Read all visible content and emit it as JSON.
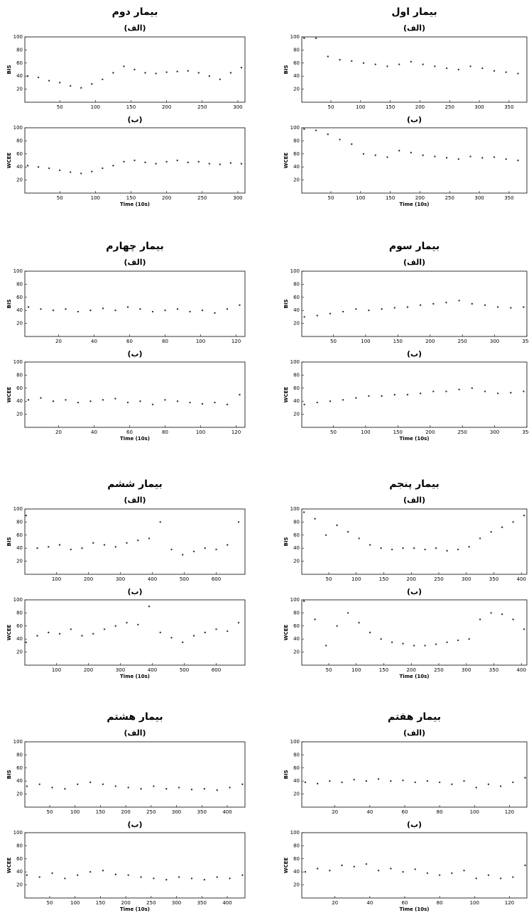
{
  "chart_data": [
    {
      "type": "scatter",
      "title": "بیمار اول",
      "subtitle": "(الف)",
      "ylabel": "BIS",
      "color": "#333333",
      "x": [
        5,
        25,
        45,
        65,
        85,
        105,
        125,
        145,
        165,
        185,
        205,
        225,
        245,
        265,
        285,
        305,
        325,
        345,
        365
      ],
      "values": [
        98,
        98,
        70,
        65,
        63,
        60,
        58,
        55,
        58,
        62,
        58,
        55,
        52,
        50,
        55,
        52,
        48,
        46,
        44
      ],
      "xlim": [
        1,
        380
      ],
      "ylim": [
        0,
        100
      ],
      "xticks": [
        50,
        100,
        150,
        200,
        250,
        300,
        350
      ],
      "yticks": [
        20,
        40,
        60,
        80,
        100
      ]
    },
    {
      "type": "scatter",
      "title": "(ب)",
      "ylabel": "WCEE",
      "xlabel": "Time (10s)",
      "color": "#333333",
      "x": [
        5,
        25,
        45,
        65,
        85,
        105,
        125,
        145,
        165,
        185,
        205,
        225,
        245,
        265,
        285,
        305,
        325,
        345,
        365
      ],
      "values": [
        98,
        96,
        90,
        82,
        75,
        60,
        58,
        55,
        65,
        62,
        58,
        56,
        54,
        52,
        56,
        54,
        55,
        52,
        50
      ],
      "xlim": [
        1,
        380
      ],
      "ylim": [
        0,
        100
      ],
      "xticks": [
        50,
        100,
        150,
        200,
        250,
        300,
        350
      ],
      "yticks": [
        20,
        40,
        60,
        80,
        100
      ]
    },
    {
      "type": "scatter",
      "title": "بیمار دوم",
      "subtitle": "(الف)",
      "ylabel": "BIS",
      "color": "#333333",
      "x": [
        5,
        20,
        35,
        50,
        65,
        80,
        95,
        110,
        125,
        140,
        155,
        170,
        185,
        200,
        215,
        230,
        245,
        260,
        275,
        290,
        305
      ],
      "values": [
        40,
        38,
        33,
        30,
        25,
        22,
        28,
        35,
        45,
        55,
        50,
        45,
        44,
        46,
        47,
        48,
        45,
        40,
        35,
        45,
        53
      ],
      "xlim": [
        1,
        310
      ],
      "ylim": [
        0,
        100
      ],
      "xticks": [
        50,
        100,
        150,
        200,
        250,
        300
      ],
      "yticks": [
        20,
        40,
        60,
        80,
        100
      ]
    },
    {
      "type": "scatter",
      "title": "(ب)",
      "ylabel": "WCEE",
      "xlabel": "Time (10s)",
      "color": "#333333",
      "x": [
        5,
        20,
        35,
        50,
        65,
        80,
        95,
        110,
        125,
        140,
        155,
        170,
        185,
        200,
        215,
        230,
        245,
        260,
        275,
        290,
        305
      ],
      "values": [
        42,
        40,
        38,
        35,
        32,
        30,
        33,
        38,
        42,
        48,
        50,
        47,
        45,
        48,
        50,
        47,
        48,
        45,
        44,
        46,
        45
      ],
      "xlim": [
        1,
        310
      ],
      "ylim": [
        0,
        100
      ],
      "xticks": [
        50,
        100,
        150,
        200,
        250,
        300
      ],
      "yticks": [
        20,
        40,
        60,
        80,
        100
      ]
    },
    {
      "type": "scatter",
      "title": "بیمار سوم",
      "subtitle": "(الف)",
      "ylabel": "BIS",
      "color": "#333333",
      "x": [
        5,
        25,
        45,
        65,
        85,
        105,
        125,
        145,
        165,
        185,
        205,
        225,
        245,
        265,
        285,
        305,
        325,
        345
      ],
      "values": [
        30,
        32,
        35,
        38,
        42,
        40,
        42,
        44,
        45,
        48,
        50,
        52,
        55,
        50,
        48,
        45,
        44,
        45
      ],
      "xlim": [
        1,
        350
      ],
      "ylim": [
        0,
        100
      ],
      "xticks": [
        50,
        100,
        150,
        200,
        250,
        300,
        350
      ],
      "yticks": [
        20,
        40,
        60,
        80,
        100
      ]
    },
    {
      "type": "scatter",
      "title": "(ب)",
      "ylabel": "WCEE",
      "xlabel": "Time (10s)",
      "color": "#333333",
      "x": [
        5,
        25,
        45,
        65,
        85,
        105,
        125,
        145,
        165,
        185,
        205,
        225,
        245,
        265,
        285,
        305,
        325,
        345
      ],
      "values": [
        35,
        38,
        40,
        42,
        45,
        48,
        48,
        50,
        50,
        52,
        55,
        55,
        58,
        60,
        55,
        52,
        53,
        55
      ],
      "xlim": [
        1,
        350
      ],
      "ylim": [
        0,
        100
      ],
      "xticks": [
        50,
        100,
        150,
        200,
        250,
        300,
        350
      ],
      "yticks": [
        20,
        40,
        60,
        80,
        100
      ]
    },
    {
      "type": "scatter",
      "title": "بیمار چهارم",
      "subtitle": "(الف)",
      "ylabel": "BIS",
      "color": "#333333",
      "x": [
        3,
        10,
        17,
        24,
        31,
        38,
        45,
        52,
        59,
        66,
        73,
        80,
        87,
        94,
        101,
        108,
        115,
        122
      ],
      "values": [
        45,
        42,
        40,
        42,
        38,
        40,
        43,
        40,
        45,
        42,
        38,
        40,
        42,
        38,
        40,
        36,
        42,
        48
      ],
      "xlim": [
        1,
        125
      ],
      "ylim": [
        0,
        100
      ],
      "xticks": [
        20,
        40,
        60,
        80,
        100,
        120
      ],
      "yticks": [
        20,
        40,
        60,
        80,
        100
      ]
    },
    {
      "type": "scatter",
      "title": "(ب)",
      "ylabel": "WCEE",
      "xlabel": "Time (10s)",
      "color": "#333333",
      "x": [
        3,
        10,
        17,
        24,
        31,
        38,
        45,
        52,
        59,
        66,
        73,
        80,
        87,
        94,
        101,
        108,
        115,
        122
      ],
      "values": [
        42,
        45,
        40,
        42,
        38,
        40,
        42,
        44,
        38,
        40,
        35,
        42,
        40,
        38,
        36,
        38,
        35,
        50
      ],
      "xlim": [
        1,
        125
      ],
      "ylim": [
        0,
        100
      ],
      "xticks": [
        20,
        40,
        60,
        80,
        100,
        120
      ],
      "yticks": [
        20,
        40,
        60,
        80,
        100
      ]
    },
    {
      "type": "scatter",
      "title": "بیمار پنجم",
      "subtitle": "(الف)",
      "ylabel": "BIS",
      "color": "#333333",
      "x": [
        5,
        25,
        45,
        65,
        85,
        105,
        125,
        145,
        165,
        185,
        205,
        225,
        245,
        265,
        285,
        305,
        325,
        345,
        365,
        385,
        405
      ],
      "values": [
        95,
        85,
        60,
        75,
        65,
        55,
        45,
        40,
        38,
        40,
        40,
        38,
        40,
        36,
        38,
        42,
        55,
        65,
        72,
        80,
        90
      ],
      "xlim": [
        1,
        410
      ],
      "ylim": [
        0,
        100
      ],
      "xticks": [
        50,
        100,
        150,
        200,
        250,
        300,
        350,
        400
      ],
      "yticks": [
        20,
        40,
        60,
        80,
        100
      ]
    },
    {
      "type": "scatter",
      "title": "(ب)",
      "ylabel": "WCEE",
      "xlabel": "Time (10s)",
      "color": "#333333",
      "x": [
        5,
        25,
        45,
        65,
        85,
        105,
        125,
        145,
        165,
        185,
        205,
        225,
        245,
        265,
        285,
        305,
        325,
        345,
        365,
        385,
        405
      ],
      "values": [
        98,
        70,
        30,
        60,
        80,
        65,
        50,
        40,
        35,
        33,
        30,
        30,
        32,
        35,
        38,
        40,
        70,
        80,
        78,
        70,
        55
      ],
      "xlim": [
        1,
        410
      ],
      "ylim": [
        0,
        100
      ],
      "xticks": [
        50,
        100,
        150,
        200,
        250,
        300,
        350,
        400
      ],
      "yticks": [
        20,
        40,
        60,
        80,
        100
      ]
    },
    {
      "type": "scatter",
      "title": "بیمار ششم",
      "subtitle": "(الف)",
      "ylabel": "BIS",
      "color": "#333333",
      "x": [
        5,
        40,
        75,
        110,
        145,
        180,
        215,
        250,
        285,
        320,
        355,
        390,
        425,
        460,
        495,
        530,
        565,
        600,
        635,
        670
      ],
      "values": [
        90,
        40,
        42,
        45,
        38,
        40,
        48,
        45,
        42,
        48,
        52,
        55,
        80,
        38,
        30,
        35,
        40,
        38,
        45,
        80
      ],
      "xlim": [
        1,
        690
      ],
      "ylim": [
        0,
        100
      ],
      "xticks": [
        100,
        200,
        300,
        400,
        500,
        600
      ],
      "yticks": [
        20,
        40,
        60,
        80,
        100
      ]
    },
    {
      "type": "scatter",
      "title": "(ب)",
      "ylabel": "WCEE",
      "xlabel": "Time (10s)",
      "color": "#333333",
      "x": [
        5,
        40,
        75,
        110,
        145,
        180,
        215,
        250,
        285,
        320,
        355,
        390,
        425,
        460,
        495,
        530,
        565,
        600,
        635,
        670
      ],
      "values": [
        35,
        45,
        50,
        48,
        55,
        45,
        48,
        55,
        60,
        65,
        62,
        90,
        50,
        42,
        35,
        45,
        50,
        55,
        52,
        65
      ],
      "xlim": [
        1,
        690
      ],
      "ylim": [
        0,
        100
      ],
      "xticks": [
        100,
        200,
        300,
        400,
        500,
        600
      ],
      "yticks": [
        20,
        40,
        60,
        80,
        100
      ]
    },
    {
      "type": "scatter",
      "title": "بیمار هفتم",
      "subtitle": "(الف)",
      "ylabel": "BIS",
      "color": "#333333",
      "x": [
        3,
        10,
        17,
        24,
        31,
        38,
        45,
        52,
        59,
        66,
        73,
        80,
        87,
        94,
        101,
        108,
        115,
        122,
        129
      ],
      "values": [
        38,
        36,
        40,
        38,
        42,
        40,
        43,
        40,
        41,
        38,
        40,
        38,
        35,
        40,
        30,
        35,
        32,
        38,
        45
      ],
      "xlim": [
        1,
        130
      ],
      "ylim": [
        0,
        100
      ],
      "xticks": [
        20,
        40,
        60,
        80,
        100,
        120
      ],
      "yticks": [
        20,
        40,
        60,
        80,
        100
      ]
    },
    {
      "type": "scatter",
      "title": "(ب)",
      "ylabel": "WCEE",
      "xlabel": "Time (10s)",
      "color": "#333333",
      "x": [
        3,
        10,
        17,
        24,
        31,
        38,
        45,
        52,
        59,
        66,
        73,
        80,
        87,
        94,
        101,
        108,
        115,
        122,
        129
      ],
      "values": [
        40,
        45,
        42,
        50,
        48,
        52,
        42,
        45,
        40,
        44,
        38,
        35,
        38,
        42,
        30,
        35,
        30,
        32,
        50
      ],
      "xlim": [
        1,
        130
      ],
      "ylim": [
        0,
        100
      ],
      "xticks": [
        20,
        40,
        60,
        80,
        100,
        120
      ],
      "yticks": [
        20,
        40,
        60,
        80,
        100
      ]
    },
    {
      "type": "scatter",
      "title": "بیمار هشتم",
      "subtitle": "(الف)",
      "ylabel": "BIS",
      "color": "#333333",
      "x": [
        5,
        30,
        55,
        80,
        105,
        130,
        155,
        180,
        205,
        230,
        255,
        280,
        305,
        330,
        355,
        380,
        405,
        430
      ],
      "values": [
        32,
        35,
        30,
        28,
        35,
        38,
        35,
        32,
        30,
        28,
        32,
        28,
        30,
        27,
        28,
        26,
        30,
        35
      ],
      "xlim": [
        1,
        435
      ],
      "ylim": [
        0,
        100
      ],
      "xticks": [
        50,
        100,
        150,
        200,
        250,
        300,
        350,
        400
      ],
      "yticks": [
        20,
        40,
        60,
        80,
        100
      ]
    },
    {
      "type": "scatter",
      "title": "(ب)",
      "ylabel": "WCEE",
      "xlabel": "Time (10s)",
      "color": "#333333",
      "x": [
        5,
        30,
        55,
        80,
        105,
        130,
        155,
        180,
        205,
        230,
        255,
        280,
        305,
        330,
        355,
        380,
        405,
        430
      ],
      "values": [
        35,
        32,
        38,
        30,
        35,
        40,
        42,
        36,
        35,
        32,
        30,
        28,
        32,
        30,
        28,
        32,
        30,
        35
      ],
      "xlim": [
        1,
        435
      ],
      "ylim": [
        0,
        100
      ],
      "xticks": [
        50,
        100,
        150,
        200,
        250,
        300,
        350,
        400
      ],
      "yticks": [
        20,
        40,
        60,
        80,
        100
      ]
    }
  ]
}
